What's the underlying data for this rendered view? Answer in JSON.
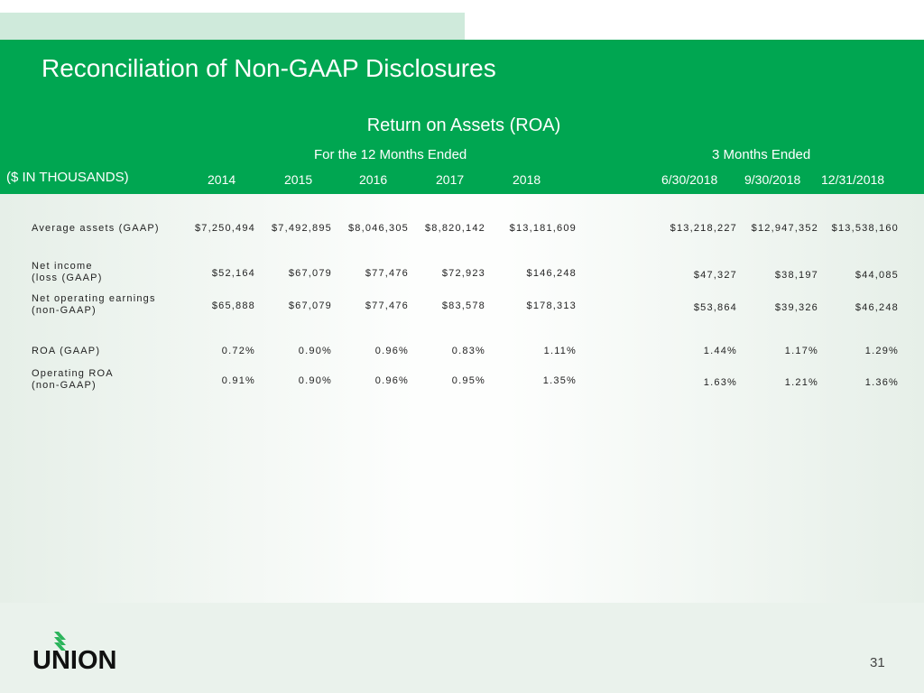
{
  "title": "Reconciliation of Non-GAAP Disclosures",
  "subtitle": "Return on Assets (ROA)",
  "group_12m": "For the 12 Months Ended",
  "group_3m": "3 Months Ended",
  "units": "($ IN THOUSANDS)",
  "columns": [
    "2014",
    "2015",
    "2016",
    "2017",
    "2018",
    "6/30/2018",
    "9/30/2018",
    "12/31/2018"
  ],
  "rows": [
    {
      "label1": "Average assets (GAAP)",
      "label2": "",
      "values": [
        "$7,250,494",
        "$7,492,895",
        "$8,046,305",
        "$8,820,142",
        "$13,181,609",
        "$13,218,227",
        "$12,947,352",
        "$13,538,160"
      ]
    },
    {
      "label1": "Net income",
      "label2": "(loss (GAAP)",
      "values": [
        "$52,164",
        "$67,079",
        "$77,476",
        "$72,923",
        "$146,248",
        "$47,327",
        "$38,197",
        "$44,085"
      ]
    },
    {
      "label1": "Net operating earnings",
      "label2": "(non-GAAP)",
      "values": [
        "$65,888",
        "$67,079",
        "$77,476",
        "$83,578",
        "$178,313",
        "$53,864",
        "$39,326",
        "$46,248"
      ]
    },
    {
      "label1": "ROA (GAAP)",
      "label2": "",
      "values": [
        "0.72%",
        "0.90%",
        "0.96%",
        "0.83%",
        "1.11%",
        "1.44%",
        "1.17%",
        "1.29%"
      ]
    },
    {
      "label1": "Operating ROA",
      "label2": "(non-GAAP)",
      "values": [
        "0.91%",
        "0.90%",
        "0.96%",
        "0.95%",
        "1.35%",
        "1.63%",
        "1.21%",
        "1.36%"
      ]
    }
  ],
  "logo_text": "UNION",
  "page_number": "31"
}
